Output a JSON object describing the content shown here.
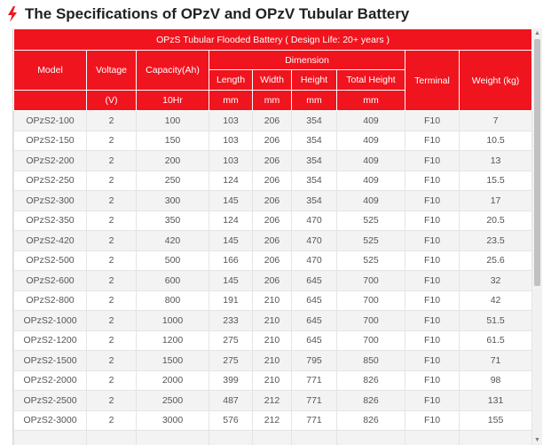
{
  "page": {
    "title": "The Specifications of OPzV and OPzV Tubular Battery",
    "accent_color": "#f0141e",
    "title_icon": "lightning-bolt-icon"
  },
  "table": {
    "caption": "OPzS Tubular Flooded Battery ( Design Life: 20+ years )",
    "headers": {
      "model": "Model",
      "voltage": "Voltage",
      "capacity": "Capacity(Ah)",
      "dimension": "Dimension",
      "length": "Length",
      "width": "Width",
      "height": "Height",
      "total_height": "Total Height",
      "terminal": "Terminal",
      "weight": "Weight (kg)"
    },
    "units": {
      "voltage": "(V)",
      "capacity": "10Hr",
      "length": "mm",
      "width": "mm",
      "height": "mm",
      "total_height": "mm"
    },
    "rows": [
      [
        "OPzS2-100",
        "2",
        "100",
        "103",
        "206",
        "354",
        "409",
        "F10",
        "7"
      ],
      [
        "OPzS2-150",
        "2",
        "150",
        "103",
        "206",
        "354",
        "409",
        "F10",
        "10.5"
      ],
      [
        "OPzS2-200",
        "2",
        "200",
        "103",
        "206",
        "354",
        "409",
        "F10",
        "13"
      ],
      [
        "OPzS2-250",
        "2",
        "250",
        "124",
        "206",
        "354",
        "409",
        "F10",
        "15.5"
      ],
      [
        "OPzS2-300",
        "2",
        "300",
        "145",
        "206",
        "354",
        "409",
        "F10",
        "17"
      ],
      [
        "OPzS2-350",
        "2",
        "350",
        "124",
        "206",
        "470",
        "525",
        "F10",
        "20.5"
      ],
      [
        "OPzS2-420",
        "2",
        "420",
        "145",
        "206",
        "470",
        "525",
        "F10",
        "23.5"
      ],
      [
        "OPzS2-500",
        "2",
        "500",
        "166",
        "206",
        "470",
        "525",
        "F10",
        "25.6"
      ],
      [
        "OPzS2-600",
        "2",
        "600",
        "145",
        "206",
        "645",
        "700",
        "F10",
        "32"
      ],
      [
        "OPzS2-800",
        "2",
        "800",
        "191",
        "210",
        "645",
        "700",
        "F10",
        "42"
      ],
      [
        "OPzS2-1000",
        "2",
        "1000",
        "233",
        "210",
        "645",
        "700",
        "F10",
        "51.5"
      ],
      [
        "OPzS2-1200",
        "2",
        "1200",
        "275",
        "210",
        "645",
        "700",
        "F10",
        "61.5"
      ],
      [
        "OPzS2-1500",
        "2",
        "1500",
        "275",
        "210",
        "795",
        "850",
        "F10",
        "71"
      ],
      [
        "OPzS2-2000",
        "2",
        "2000",
        "399",
        "210",
        "771",
        "826",
        "F10",
        "98"
      ],
      [
        "OPzS2-2500",
        "2",
        "2500",
        "487",
        "212",
        "771",
        "826",
        "F10",
        "131"
      ],
      [
        "OPzS2-3000",
        "2",
        "3000",
        "576",
        "212",
        "771",
        "826",
        "F10",
        "155"
      ],
      [
        "",
        "",
        "",
        "",
        "",
        "",
        "",
        "",
        ""
      ]
    ]
  }
}
